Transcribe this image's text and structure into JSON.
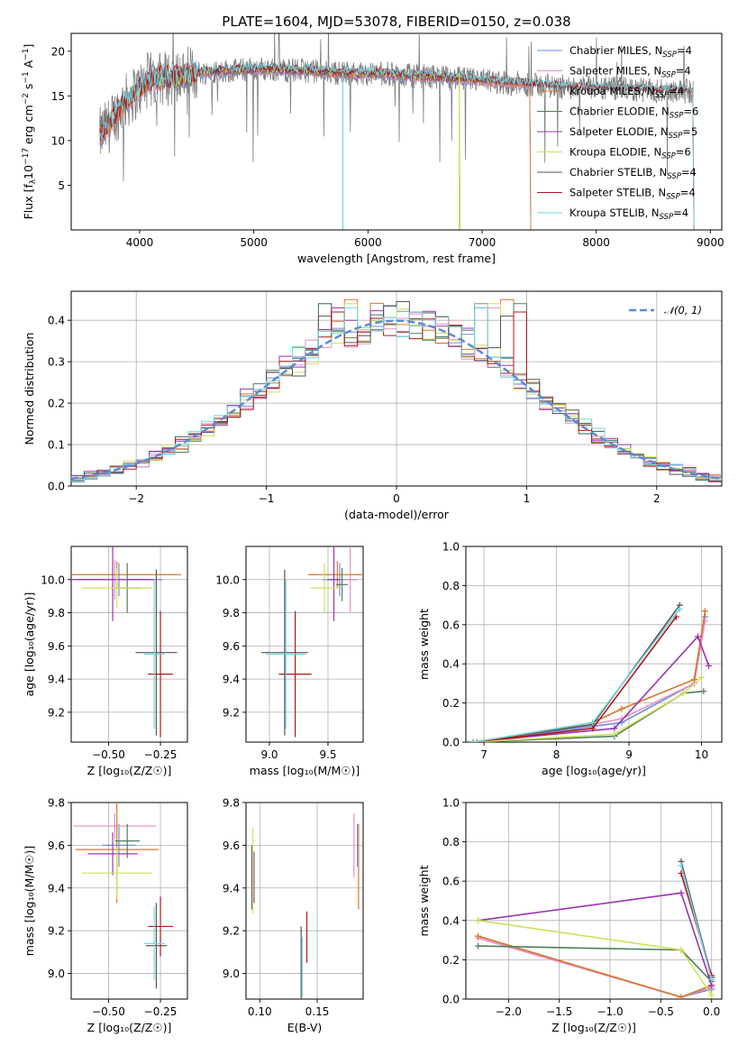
{
  "colors": {
    "Chabrier MILES": "#6a8fd8",
    "Salpeter MILES": "#e88fc6",
    "Kroupa MILES": "#d9772b",
    "Chabrier ELODIE": "#4f7f5a",
    "Salpeter ELODIE": "#9b35b0",
    "Kroupa ELODIE": "#cfe15a",
    "Chabrier STELIB": "#555555",
    "Salpeter STELIB": "#b0161b",
    "Kroupa STELIB": "#74d6e0",
    "gaussian": "#5b8bd4"
  },
  "chart_data": [
    {
      "type": "line",
      "title": "PLATE=1604, MJD=53078, FIBERID=0150, z=0.038",
      "xlabel": "wavelength [Angstrom, rest frame]",
      "ylabel_parts": [
        "Flux [f",
        "λ",
        "10",
        "−17",
        " erg cm",
        "−2",
        " s",
        "−1",
        " A",
        "−1",
        "]"
      ],
      "xlim": [
        3400,
        9100
      ],
      "ylim": [
        0,
        22
      ],
      "xticks": [
        4000,
        5000,
        6000,
        7000,
        8000,
        9000
      ],
      "yticks": [
        5,
        10,
        15,
        20
      ],
      "legend_position": "upper right",
      "legend": [
        {
          "model": "Chabrier MILES",
          "n": "4"
        },
        {
          "model": "Salpeter MILES",
          "n": "4"
        },
        {
          "model": "Kroupa MILES",
          "n": "4"
        },
        {
          "model": "Chabrier ELODIE",
          "n": "6"
        },
        {
          "model": "Salpeter ELODIE",
          "n": "5"
        },
        {
          "model": "Kroupa ELODIE",
          "n": "6"
        },
        {
          "model": "Chabrier STELIB",
          "n": "4"
        },
        {
          "model": "Salpeter STELIB",
          "n": "4"
        },
        {
          "model": "Kroupa STELIB",
          "n": "4"
        }
      ],
      "legend_n_label": "N",
      "legend_n_sub": "SSP",
      "spectrum_anchor_points": {
        "x": [
          3650,
          3750,
          3850,
          3950,
          4050,
          4150,
          4300,
          4500,
          4700,
          4900,
          5100,
          5300,
          5500,
          5700,
          5900,
          6100,
          6300,
          6500,
          6700,
          6900,
          7100,
          7300,
          7500,
          7700,
          7900,
          8100,
          8300,
          8500,
          8700,
          8850
        ],
        "y": [
          10.5,
          12.0,
          14.0,
          15.2,
          16.4,
          17.0,
          17.0,
          17.6,
          17.8,
          17.9,
          18.0,
          17.9,
          17.8,
          17.6,
          17.5,
          17.5,
          17.3,
          17.2,
          17.0,
          16.8,
          16.6,
          16.4,
          16.2,
          16.0,
          15.9,
          15.8,
          15.7,
          15.6,
          15.6,
          15.5
        ]
      },
      "model_ranges": {
        "MILES": [
          3650,
          7420
        ],
        "ELODIE": [
          3900,
          6800
        ],
        "STELIB": [
          3650,
          8850
        ]
      }
    },
    {
      "type": "bar",
      "xlabel": "(data-model)/error",
      "ylabel": "Normed distribution",
      "xlim": [
        -2.5,
        2.5
      ],
      "ylim": [
        0,
        0.47
      ],
      "xticks": [
        -2,
        -1,
        0,
        1,
        2
      ],
      "yticks": [
        0.0,
        0.1,
        0.2,
        0.3,
        0.4
      ],
      "legend_position": "upper right",
      "legend_label": "𝒩(0, 1)",
      "bin_width": 0.1,
      "bin_start": -2.5,
      "series_names": [
        "Chabrier MILES",
        "Salpeter MILES",
        "Kroupa MILES",
        "Chabrier ELODIE",
        "Salpeter ELODIE",
        "Kroupa ELODIE",
        "Chabrier STELIB",
        "Salpeter STELIB",
        "Kroupa STELIB"
      ],
      "spike_values": [
        0.44,
        0.43,
        0.45,
        0.44,
        0.43,
        0.44,
        0.41,
        0.42,
        0.43
      ]
    },
    {
      "type": "scatter",
      "xlabel": "Z [log₁₀(Z/Z☉)]",
      "ylabel": "age  [log₁₀(age/yr)]",
      "xlim": [
        -0.68,
        -0.12
      ],
      "ylim": [
        9.02,
        10.2
      ],
      "xticks": [
        -0.5,
        -0.25
      ],
      "yticks": [
        9.2,
        9.4,
        9.6,
        9.8,
        10.0
      ],
      "points": [
        {
          "name": "Chabrier MILES",
          "x": -0.45,
          "y": 10.0,
          "xerr": 0.21,
          "yerr": 0.1
        },
        {
          "name": "Salpeter MILES",
          "x": -0.47,
          "y": 10.0,
          "xerr": 0.2,
          "yerr": 0.12
        },
        {
          "name": "Kroupa MILES",
          "x": -0.46,
          "y": 10.03,
          "xerr": 0.31,
          "yerr": 0.08
        },
        {
          "name": "Chabrier ELODIE",
          "x": -0.41,
          "y": 9.95,
          "xerr": 0.06,
          "yerr": 0.15
        },
        {
          "name": "Salpeter ELODIE",
          "x": -0.48,
          "y": 10.0,
          "xerr": 0.2,
          "yerr": 0.25
        },
        {
          "name": "Kroupa ELODIE",
          "x": -0.46,
          "y": 9.95,
          "xerr": 0.17,
          "yerr": 0.12
        },
        {
          "name": "Chabrier STELIB",
          "x": -0.27,
          "y": 9.56,
          "xerr": 0.1,
          "yerr": 0.5
        },
        {
          "name": "Salpeter STELIB",
          "x": -0.25,
          "y": 9.43,
          "xerr": 0.06,
          "yerr": 0.38
        },
        {
          "name": "Kroupa STELIB",
          "x": -0.28,
          "y": 9.55,
          "xerr": 0.05,
          "yerr": 0.45
        }
      ]
    },
    {
      "type": "scatter",
      "xlabel": "mass [log₁₀(M/M☉)]",
      "ylabel": "",
      "xlim": [
        8.8,
        9.8
      ],
      "ylim": [
        9.02,
        10.2
      ],
      "xticks": [
        9.0,
        9.5
      ],
      "yticks": [
        9.2,
        9.4,
        9.6,
        9.8,
        10.0
      ],
      "points": [
        {
          "name": "Chabrier MILES",
          "x": 9.6,
          "y": 10.0,
          "xerr": 0.15,
          "yerr": 0.1
        },
        {
          "name": "Salpeter MILES",
          "x": 9.69,
          "y": 10.0,
          "xerr": 0.06,
          "yerr": 0.2
        },
        {
          "name": "Kroupa MILES",
          "x": 9.58,
          "y": 10.03,
          "xerr": 0.25,
          "yerr": 0.08
        },
        {
          "name": "Chabrier ELODIE",
          "x": 9.62,
          "y": 9.97,
          "xerr": 0.05,
          "yerr": 0.1
        },
        {
          "name": "Salpeter ELODIE",
          "x": 9.55,
          "y": 10.0,
          "xerr": 0.05,
          "yerr": 0.25
        },
        {
          "name": "Kroupa ELODIE",
          "x": 9.47,
          "y": 9.95,
          "xerr": 0.12,
          "yerr": 0.15
        },
        {
          "name": "Chabrier STELIB",
          "x": 9.13,
          "y": 9.56,
          "xerr": 0.2,
          "yerr": 0.5
        },
        {
          "name": "Salpeter STELIB",
          "x": 9.22,
          "y": 9.43,
          "xerr": 0.14,
          "yerr": 0.38
        },
        {
          "name": "Kroupa STELIB",
          "x": 9.14,
          "y": 9.55,
          "xerr": 0.17,
          "yerr": 0.45
        }
      ]
    },
    {
      "type": "line",
      "xlabel": "age  [log₁₀(age/yr)]",
      "ylabel": "mass weight",
      "xlim": [
        6.75,
        10.28
      ],
      "ylim": [
        0,
        1
      ],
      "xticks": [
        7,
        8,
        9,
        10
      ],
      "yticks": [
        0.0,
        0.2,
        0.4,
        0.6,
        0.8,
        1.0
      ],
      "series": [
        {
          "name": "Chabrier MILES",
          "x": [
            6.9,
            8.5,
            8.9,
            9.9,
            10.05
          ],
          "y": [
            0.0,
            0.08,
            0.1,
            0.3,
            0.64
          ]
        },
        {
          "name": "Salpeter MILES",
          "x": [
            6.9,
            8.5,
            8.9,
            9.9,
            10.05
          ],
          "y": [
            0.0,
            0.09,
            0.12,
            0.3,
            0.62
          ]
        },
        {
          "name": "Kroupa MILES",
          "x": [
            6.9,
            8.5,
            8.9,
            9.9,
            10.05
          ],
          "y": [
            0.0,
            0.1,
            0.17,
            0.32,
            0.67
          ]
        },
        {
          "name": "Chabrier ELODIE",
          "x": [
            6.85,
            8.8,
            9.75,
            10.03
          ],
          "y": [
            0.0,
            0.03,
            0.25,
            0.26
          ]
        },
        {
          "name": "Salpeter ELODIE",
          "x": [
            6.85,
            8.8,
            9.95,
            10.1
          ],
          "y": [
            0.0,
            0.07,
            0.54,
            0.39
          ]
        },
        {
          "name": "Kroupa ELODIE",
          "x": [
            6.85,
            8.8,
            9.75,
            10.0
          ],
          "y": [
            0.0,
            0.04,
            0.25,
            0.33
          ]
        },
        {
          "name": "Chabrier STELIB",
          "x": [
            6.85,
            8.5,
            9.7
          ],
          "y": [
            0.0,
            0.09,
            0.7
          ]
        },
        {
          "name": "Salpeter STELIB",
          "x": [
            6.85,
            8.5,
            9.65
          ],
          "y": [
            0.0,
            0.07,
            0.64
          ]
        },
        {
          "name": "Kroupa STELIB",
          "x": [
            6.85,
            8.5,
            9.7
          ],
          "y": [
            0.0,
            0.1,
            0.68
          ]
        }
      ]
    },
    {
      "type": "scatter",
      "xlabel": "Z [log₁₀(Z/Z☉)]",
      "ylabel": "mass [log₁₀(M/M☉)]",
      "xlim": [
        -0.68,
        -0.12
      ],
      "ylim": [
        8.88,
        9.8
      ],
      "xticks": [
        -0.5,
        -0.25
      ],
      "yticks": [
        9.0,
        9.2,
        9.4,
        9.6,
        9.8
      ],
      "points": [
        {
          "name": "Chabrier MILES",
          "x": -0.45,
          "y": 9.6,
          "xerr": 0.08,
          "yerr": 0.1
        },
        {
          "name": "Salpeter MILES",
          "x": -0.47,
          "y": 9.69,
          "xerr": 0.2,
          "yerr": 0.06
        },
        {
          "name": "Kroupa MILES",
          "x": -0.46,
          "y": 9.58,
          "xerr": 0.2,
          "yerr": 0.25
        },
        {
          "name": "Chabrier ELODIE",
          "x": -0.41,
          "y": 9.62,
          "xerr": 0.06,
          "yerr": 0.08
        },
        {
          "name": "Salpeter ELODIE",
          "x": -0.48,
          "y": 9.56,
          "xerr": 0.12,
          "yerr": 0.1
        },
        {
          "name": "Kroupa ELODIE",
          "x": -0.46,
          "y": 9.47,
          "xerr": 0.17,
          "yerr": 0.12
        },
        {
          "name": "Chabrier STELIB",
          "x": -0.27,
          "y": 9.13,
          "xerr": 0.05,
          "yerr": 0.2
        },
        {
          "name": "Salpeter STELIB",
          "x": -0.25,
          "y": 9.22,
          "xerr": 0.06,
          "yerr": 0.14
        },
        {
          "name": "Kroupa STELIB",
          "x": -0.28,
          "y": 9.14,
          "xerr": 0.05,
          "yerr": 0.17
        }
      ]
    },
    {
      "type": "scatter",
      "xlabel": "E(B-V)",
      "ylabel": "",
      "xlim": [
        0.088,
        0.19
      ],
      "ylim": [
        8.88,
        9.8
      ],
      "xticks": [
        0.1,
        0.15
      ],
      "yticks": [
        9.0,
        9.2,
        9.4,
        9.6,
        9.8
      ],
      "points": [
        {
          "name": "Chabrier MILES",
          "x": 0.185,
          "y": 9.6,
          "xerr": 0,
          "yerr": 0.1
        },
        {
          "name": "Salpeter MILES",
          "x": 0.182,
          "y": 9.6,
          "xerr": 0,
          "yerr": 0.15
        },
        {
          "name": "Kroupa MILES",
          "x": 0.186,
          "y": 9.5,
          "xerr": 0,
          "yerr": 0.2
        },
        {
          "name": "Chabrier ELODIE",
          "x": 0.093,
          "y": 9.45,
          "xerr": 0,
          "yerr": 0.15
        },
        {
          "name": "Salpeter ELODIE",
          "x": 0.095,
          "y": 9.45,
          "xerr": 0,
          "yerr": 0.12
        },
        {
          "name": "Kroupa ELODIE",
          "x": 0.094,
          "y": 9.48,
          "xerr": 0,
          "yerr": 0.2
        },
        {
          "name": "Chabrier STELIB",
          "x": 0.136,
          "y": 9.05,
          "xerr": 0,
          "yerr": 0.17
        },
        {
          "name": "Salpeter STELIB",
          "x": 0.141,
          "y": 9.17,
          "xerr": 0,
          "yerr": 0.12
        },
        {
          "name": "Kroupa STELIB",
          "x": 0.137,
          "y": 9.03,
          "xerr": 0,
          "yerr": 0.14
        }
      ]
    },
    {
      "type": "line",
      "xlabel": "Z [log₁₀(Z/Z☉)]",
      "ylabel": "mass weight",
      "xlim": [
        -2.42,
        0.1
      ],
      "ylim": [
        0,
        1
      ],
      "xticks": [
        -2.0,
        -1.5,
        -1.0,
        -0.5,
        0.0
      ],
      "yticks": [
        0.0,
        0.2,
        0.4,
        0.6,
        0.8,
        1.0
      ],
      "series": [
        {
          "name": "Chabrier MILES",
          "x": [
            -2.3,
            -0.3,
            0.0
          ],
          "y": [
            0.32,
            0.01,
            0.05
          ]
        },
        {
          "name": "Salpeter MILES",
          "x": [
            -2.3,
            -0.3,
            0.0
          ],
          "y": [
            0.31,
            0.01,
            0.06
          ]
        },
        {
          "name": "Kroupa MILES",
          "x": [
            -2.3,
            -0.3,
            0.0
          ],
          "y": [
            0.32,
            0.01,
            0.07
          ]
        },
        {
          "name": "Chabrier ELODIE",
          "x": [
            -2.3,
            -0.3,
            0.0
          ],
          "y": [
            0.27,
            0.25,
            0.09
          ]
        },
        {
          "name": "Salpeter ELODIE",
          "x": [
            -2.3,
            -0.3,
            0.0
          ],
          "y": [
            0.4,
            0.54,
            0.07
          ]
        },
        {
          "name": "Kroupa ELODIE",
          "x": [
            -2.3,
            -0.3,
            0.0
          ],
          "y": [
            0.4,
            0.25,
            0.02
          ]
        },
        {
          "name": "Chabrier STELIB",
          "x": [
            -0.3,
            0.0
          ],
          "y": [
            0.7,
            0.11
          ]
        },
        {
          "name": "Salpeter STELIB",
          "x": [
            -0.3,
            0.0
          ],
          "y": [
            0.64,
            0.12
          ]
        },
        {
          "name": "Kroupa STELIB",
          "x": [
            -0.3,
            0.0
          ],
          "y": [
            0.68,
            0.1
          ]
        }
      ]
    }
  ]
}
